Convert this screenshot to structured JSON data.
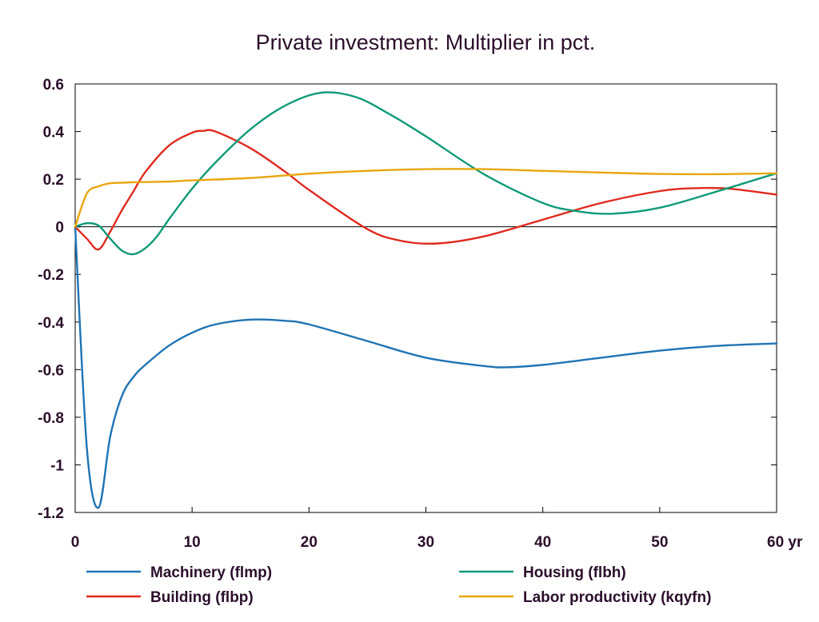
{
  "chart_data": {
    "type": "line",
    "title": "Private investment: Multiplier in pct.",
    "xlabel": "",
    "ylabel": "",
    "xlim": [
      0,
      60
    ],
    "ylim": [
      -1.2,
      0.6
    ],
    "x_ticks": [
      0,
      10,
      20,
      30,
      40,
      50,
      60
    ],
    "x_tick_labels": [
      "0",
      "10",
      "20",
      "30",
      "40",
      "50",
      "60 yr"
    ],
    "y_ticks": [
      -1.2,
      -1,
      -0.8,
      -0.6,
      -0.4,
      -0.2,
      0,
      0.2,
      0.4,
      0.6
    ],
    "y_tick_labels": [
      "-1.2",
      "-1",
      "-0.8",
      "-0.6",
      "-0.4",
      "-0.2",
      "0",
      "0.2",
      "0.4",
      "0.6"
    ],
    "grid": false,
    "zero_line": true,
    "legend_position": "bottom",
    "series": [
      {
        "name": "Machinery (flmp)",
        "color": "#1f74b4",
        "x": [
          0,
          1,
          2,
          3,
          4,
          5,
          6,
          8,
          10,
          12,
          15,
          18,
          20,
          25,
          30,
          35,
          37,
          40,
          45,
          50,
          55,
          60
        ],
        "y": [
          0,
          -0.93,
          -1.18,
          -0.88,
          -0.71,
          -0.63,
          -0.58,
          -0.5,
          -0.445,
          -0.41,
          -0.39,
          -0.395,
          -0.41,
          -0.48,
          -0.55,
          -0.585,
          -0.59,
          -0.58,
          -0.55,
          -0.52,
          -0.5,
          -0.49
        ]
      },
      {
        "name": "Building (flbp)",
        "color": "#e02a1f",
        "x": [
          0,
          1,
          2,
          3,
          4,
          5,
          6,
          8,
          10,
          11,
          12,
          15,
          18,
          20,
          25,
          28,
          31,
          35,
          40,
          45,
          50,
          53,
          56,
          60
        ],
        "y": [
          0,
          -0.05,
          -0.095,
          -0.02,
          0.07,
          0.15,
          0.23,
          0.34,
          0.395,
          0.403,
          0.4,
          0.33,
          0.23,
          0.155,
          -0.01,
          -0.06,
          -0.07,
          -0.04,
          0.03,
          0.1,
          0.15,
          0.162,
          0.16,
          0.135
        ]
      },
      {
        "name": "Housing (flbh)",
        "color": "#0f9a78",
        "x": [
          0,
          1,
          2,
          3,
          4,
          5,
          6,
          7,
          8,
          10,
          12,
          15,
          18,
          21,
          24,
          27,
          30,
          35,
          40,
          43,
          46,
          50,
          55,
          60
        ],
        "y": [
          0,
          0.015,
          0.005,
          -0.05,
          -0.1,
          -0.115,
          -0.09,
          -0.04,
          0.03,
          0.16,
          0.27,
          0.41,
          0.51,
          0.563,
          0.545,
          0.47,
          0.38,
          0.22,
          0.1,
          0.065,
          0.055,
          0.08,
          0.15,
          0.225
        ]
      },
      {
        "name": "Labor productivity (kqyfn)",
        "color": "#e8a60e",
        "x": [
          0,
          1,
          2,
          3,
          4,
          5,
          6,
          8,
          10,
          15,
          20,
          25,
          30,
          35,
          40,
          45,
          50,
          55,
          60
        ],
        "y": [
          0,
          0.14,
          0.17,
          0.183,
          0.185,
          0.187,
          0.188,
          0.19,
          0.195,
          0.205,
          0.223,
          0.235,
          0.242,
          0.242,
          0.235,
          0.228,
          0.222,
          0.221,
          0.225
        ]
      }
    ]
  }
}
